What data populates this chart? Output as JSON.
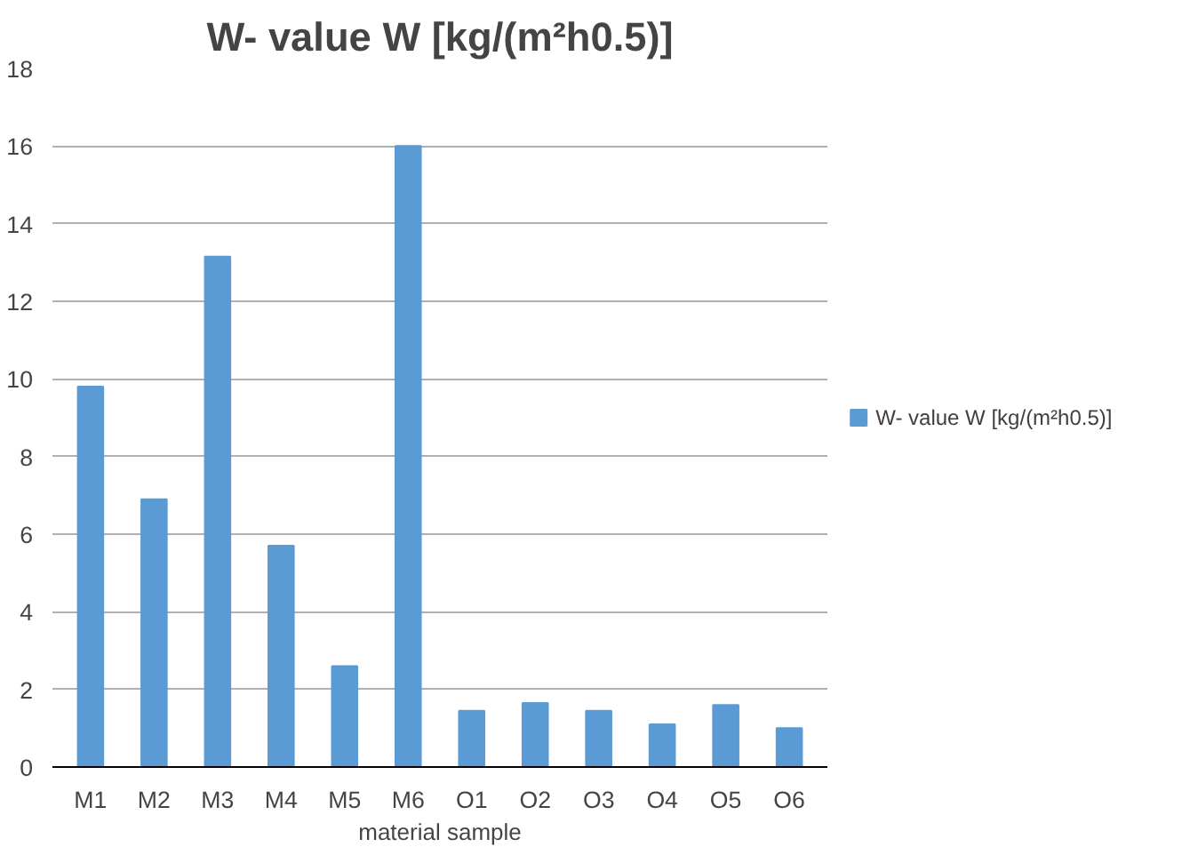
{
  "chart_data": {
    "type": "bar",
    "title": "W- value W [kg/(m²h0.5)]",
    "xlabel": "material sample",
    "categories": [
      "M1",
      "M2",
      "M3",
      "M4",
      "M5",
      "M6",
      "O1",
      "O2",
      "O3",
      "O4",
      "O5",
      "O6"
    ],
    "series": [
      {
        "name": "W- value W [kg/(m²h0.5)]",
        "color": "#5b9bd5",
        "values": [
          9.8,
          6.9,
          13.15,
          5.7,
          2.6,
          16.0,
          1.45,
          1.65,
          1.45,
          1.1,
          1.6,
          1.0
        ]
      }
    ],
    "ylim": [
      0,
      18
    ],
    "yticks": [
      0,
      2,
      4,
      6,
      8,
      10,
      12,
      14,
      16,
      18
    ],
    "grid": "y",
    "legend": "right"
  }
}
